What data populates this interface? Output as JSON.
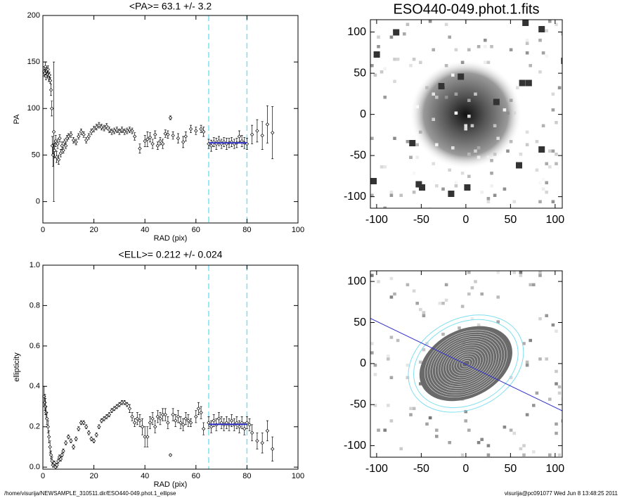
{
  "chart_data": [
    {
      "type": "scatter",
      "title": "<PA>=  63.1 +/-   3.2",
      "x_label": "RAD (pix)",
      "y_label": "PA",
      "xlim": [
        0,
        100
      ],
      "xticks": [
        0,
        20,
        40,
        60,
        80,
        100
      ],
      "ylim": [
        -23,
        200
      ],
      "yticks": [
        0,
        50,
        100,
        150,
        200
      ],
      "color": "#000000",
      "fit_color": "#3333cc",
      "vline_color": "#7fdfef",
      "fit": {
        "value": 63.1,
        "x": [
          65,
          80
        ]
      },
      "x": [
        0.5,
        0.8,
        1.0,
        1.2,
        1.5,
        1.8,
        2.0,
        2.3,
        2.6,
        2.9,
        3.2,
        3.5,
        3.7,
        4.0,
        4.3,
        4.6,
        5.0,
        5.4,
        5.8,
        6.2,
        6.6,
        7.0,
        7.5,
        8.0,
        8.5,
        9.0,
        9.5,
        10,
        11,
        12,
        13,
        14,
        15,
        16,
        17,
        18,
        19,
        20,
        21,
        22,
        23,
        24,
        25,
        26,
        27,
        28,
        29,
        30,
        31,
        32,
        33,
        34,
        35,
        36,
        38,
        40,
        41,
        42,
        43,
        44,
        45,
        46,
        47,
        48,
        49,
        50,
        51,
        53,
        55,
        56,
        58,
        60,
        62,
        63,
        65,
        66,
        67,
        68,
        69,
        70,
        71,
        72,
        73,
        74,
        75,
        76,
        77,
        78,
        79,
        80,
        82,
        84,
        86,
        88,
        90
      ],
      "values": [
        140,
        138,
        145,
        135,
        140,
        137,
        142,
        133,
        136,
        130,
        120,
        100,
        60,
        50,
        75,
        55,
        65,
        48,
        62,
        45,
        68,
        52,
        60,
        55,
        64,
        60,
        68,
        70,
        72,
        66,
        64,
        70,
        75,
        72,
        66,
        70,
        75,
        78,
        80,
        82,
        80,
        79,
        81,
        77,
        75,
        76,
        77,
        75,
        77,
        75,
        76,
        77,
        76,
        70,
        57,
        65,
        67,
        69,
        62,
        72,
        60,
        65,
        62,
        73,
        72,
        90,
        71,
        68,
        64,
        70,
        78,
        76,
        78,
        75,
        62,
        60,
        64,
        62,
        65,
        62,
        64,
        62,
        63,
        64,
        62,
        63,
        70,
        65,
        63,
        62,
        72,
        76,
        71,
        83,
        74
      ],
      "errors": [
        5,
        4,
        5,
        4,
        4,
        3,
        4,
        4,
        3,
        3,
        6,
        8,
        10,
        12,
        75,
        8,
        6,
        6,
        5,
        5,
        4,
        4,
        4,
        3,
        3,
        3,
        3,
        3,
        3,
        3,
        3,
        3,
        3,
        3,
        3,
        3,
        3,
        3,
        3,
        3,
        3,
        3,
        3,
        3,
        3,
        3,
        3,
        3,
        3,
        3,
        3,
        3,
        3,
        4,
        5,
        6,
        8,
        5,
        5,
        4,
        4,
        4,
        5,
        4,
        4,
        2,
        4,
        5,
        6,
        5,
        4,
        4,
        4,
        5,
        5,
        6,
        5,
        6,
        5,
        5,
        5,
        6,
        5,
        5,
        5,
        5,
        6,
        6,
        6,
        6,
        10,
        12,
        15,
        20,
        28
      ]
    },
    {
      "type": "scatter",
      "title": "<ELL>= 0.212 +/-  0.024",
      "x_label": "RAD (pix)",
      "y_label": "ellipticity",
      "xlim": [
        0,
        100
      ],
      "xticks": [
        0,
        20,
        40,
        60,
        80,
        100
      ],
      "ylim": [
        -0.01,
        1.0
      ],
      "yticks": [
        {
          "value": 0,
          "label": "0.0"
        },
        0.2,
        0.4,
        0.6,
        0.8,
        {
          "value": 1,
          "label": "1.0"
        }
      ],
      "color": "#000000",
      "fit_color": "#3333cc",
      "vline_color": "#7fdfef",
      "fit": {
        "value": 0.212,
        "x": [
          65,
          80
        ]
      },
      "x": [
        0.5,
        0.8,
        1.0,
        1.3,
        1.6,
        2.0,
        2.4,
        2.8,
        3.2,
        3.6,
        4.0,
        4.5,
        5.0,
        5.5,
        6.0,
        6.5,
        7.0,
        7.5,
        8.0,
        9,
        10,
        11,
        12,
        13,
        14,
        15,
        16,
        17,
        18,
        19,
        20,
        21,
        22,
        23,
        24,
        25,
        26,
        27,
        28,
        29,
        30,
        31,
        32,
        33,
        34,
        35,
        36,
        37,
        38,
        39,
        40,
        41,
        42,
        43,
        44,
        45,
        46,
        47,
        48,
        49,
        50,
        51,
        52,
        53,
        54,
        55,
        56,
        57,
        58,
        60,
        61,
        62,
        63,
        65,
        66,
        67,
        68,
        69,
        70,
        71,
        72,
        73,
        74,
        75,
        76,
        77,
        78,
        79,
        80,
        81,
        82,
        84,
        86,
        88,
        90
      ],
      "values": [
        0.35,
        0.32,
        0.3,
        0.27,
        0.24,
        0.2,
        0.15,
        0.1,
        0.06,
        0.03,
        0.01,
        0.02,
        0.0,
        0.01,
        0.03,
        0.05,
        0.04,
        0.06,
        0.08,
        0.12,
        0.15,
        0.13,
        0.1,
        0.14,
        0.19,
        0.22,
        0.22,
        0.2,
        0.17,
        0.14,
        0.13,
        0.16,
        0.2,
        0.23,
        0.24,
        0.25,
        0.26,
        0.28,
        0.29,
        0.3,
        0.31,
        0.32,
        0.32,
        0.31,
        0.29,
        0.25,
        0.22,
        0.24,
        0.23,
        0.2,
        0.15,
        0.15,
        0.22,
        0.24,
        0.2,
        0.25,
        0.24,
        0.26,
        0.26,
        0.22,
        0.06,
        0.26,
        0.23,
        0.25,
        0.22,
        0.21,
        0.24,
        0.23,
        0.22,
        0.25,
        0.29,
        0.27,
        0.19,
        0.22,
        0.2,
        0.23,
        0.21,
        0.24,
        0.22,
        0.21,
        0.22,
        0.21,
        0.23,
        0.21,
        0.22,
        0.2,
        0.22,
        0.19,
        0.22,
        0.21,
        0.17,
        0.13,
        0.12,
        0.18,
        0.09
      ],
      "errors": [
        0.05,
        0.04,
        0.04,
        0.03,
        0.03,
        0.03,
        0.03,
        0.03,
        0.02,
        0.02,
        0.01,
        0.01,
        0.01,
        0.01,
        0.01,
        0.01,
        0.01,
        0.01,
        0.01,
        0.01,
        0.01,
        0.01,
        0.01,
        0.01,
        0.01,
        0.01,
        0.01,
        0.01,
        0.01,
        0.01,
        0.01,
        0.01,
        0.01,
        0.01,
        0.01,
        0.01,
        0.01,
        0.01,
        0.01,
        0.01,
        0.01,
        0.01,
        0.01,
        0.01,
        0.02,
        0.02,
        0.02,
        0.03,
        0.03,
        0.04,
        0.05,
        0.05,
        0.03,
        0.03,
        0.03,
        0.03,
        0.03,
        0.03,
        0.03,
        0.03,
        0.005,
        0.03,
        0.03,
        0.03,
        0.03,
        0.03,
        0.03,
        0.03,
        0.02,
        0.03,
        0.03,
        0.03,
        0.03,
        0.03,
        0.03,
        0.03,
        0.03,
        0.03,
        0.03,
        0.03,
        0.03,
        0.03,
        0.03,
        0.03,
        0.03,
        0.03,
        0.03,
        0.03,
        0.03,
        0.03,
        0.04,
        0.04,
        0.05,
        0.05,
        0.06
      ]
    },
    {
      "type": "image",
      "title": "ESO440-049.phot.1.fits",
      "xlim": [
        -107,
        108
      ],
      "xticks": [
        -100,
        -50,
        0,
        50,
        100
      ],
      "ylim": [
        -114,
        115
      ],
      "yticks": [
        -100,
        -50,
        0,
        50,
        100
      ]
    },
    {
      "type": "contours",
      "xlim": [
        -107,
        108
      ],
      "xticks": [
        -100,
        -50,
        0,
        50,
        100
      ],
      "ylim": [
        -114,
        113
      ],
      "yticks": [
        -100,
        -50,
        0,
        50,
        100
      ]
    }
  ],
  "footer": {
    "left": "/home/visurija/NEWSAMPLE_310511.dir/ESO440-049.phot.1_ellipse",
    "right": "visurija@pc091077  Wed Jun  8 13:48:25 2011"
  }
}
